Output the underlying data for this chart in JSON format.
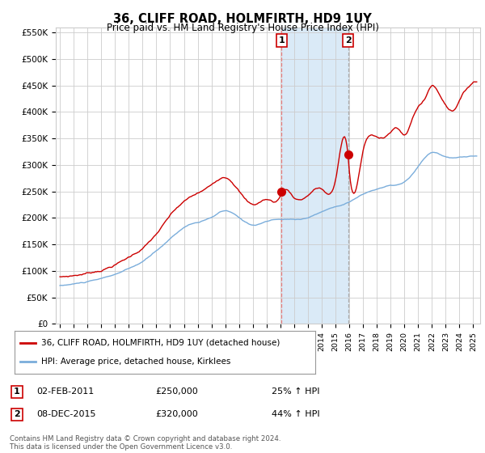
{
  "title": "36, CLIFF ROAD, HOLMFIRTH, HD9 1UY",
  "subtitle": "Price paid vs. HM Land Registry's House Price Index (HPI)",
  "legend_property": "36, CLIFF ROAD, HOLMFIRTH, HD9 1UY (detached house)",
  "legend_hpi": "HPI: Average price, detached house, Kirklees",
  "footer": "Contains HM Land Registry data © Crown copyright and database right 2024.\nThis data is licensed under the Open Government Licence v3.0.",
  "transaction1_label": "1",
  "transaction1_date": "02-FEB-2011",
  "transaction1_price": "£250,000",
  "transaction1_pct": "25% ↑ HPI",
  "transaction1_year": 2011.08,
  "transaction1_value": 250000,
  "transaction2_label": "2",
  "transaction2_date": "08-DEC-2015",
  "transaction2_price": "£320,000",
  "transaction2_pct": "44% ↑ HPI",
  "transaction2_year": 2015.92,
  "transaction2_value": 320000,
  "ylim": [
    0,
    560000
  ],
  "xlim_start": 1994.7,
  "xlim_end": 2025.5,
  "property_color": "#cc0000",
  "hpi_color": "#7aaddb",
  "shade_color": "#daeaf7",
  "grid_color": "#cccccc",
  "bg_color": "#ffffff",
  "yticks": [
    0,
    50000,
    100000,
    150000,
    200000,
    250000,
    300000,
    350000,
    400000,
    450000,
    500000,
    550000
  ],
  "ytick_labels": [
    "£0",
    "£50K",
    "£100K",
    "£150K",
    "£200K",
    "£250K",
    "£300K",
    "£350K",
    "£400K",
    "£450K",
    "£500K",
    "£550K"
  ]
}
